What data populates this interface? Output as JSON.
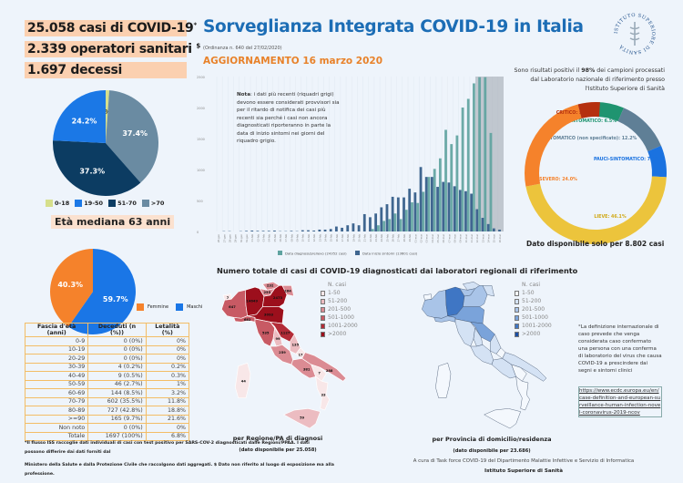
{
  "header": {
    "cases": "25.058 casi di COVID-19",
    "cases_mark": "*",
    "workers": "2.339 operatori sanitari",
    "workers_mark": "$",
    "deaths": "1.697 decessi"
  },
  "title": "Sorveglianza Integrata COVID-19 in Italia",
  "ordinance": "(Ordinanza n. 640 del 27/02/2020)",
  "update": "AGGIORNAMENTO 16 marzo 2020",
  "age_pie": {
    "slices": [
      {
        "label": "0-18",
        "value": 1.1,
        "text": "1.1%",
        "color": "#d6df8b"
      },
      {
        "label": ">70",
        "value": 37.4,
        "text": "37.4%",
        "color": "#6a8ba2"
      },
      {
        "label": "51-70",
        "value": 37.3,
        "text": "37.3%",
        "color": "#0c3c62"
      },
      {
        "label": "19-50",
        "value": 24.2,
        "text": "24.2%",
        "color": "#1b78e6"
      }
    ],
    "legend": [
      "0-18",
      "19-50",
      "51-70",
      ">70"
    ]
  },
  "median_age": "Età mediana 63 anni",
  "sex_pie": {
    "slices": [
      {
        "label": "Maschi",
        "value": 59.7,
        "text": "59.7%",
        "color": "#1a76e6"
      },
      {
        "label": "Femmine",
        "value": 40.3,
        "text": "40.3%",
        "color": "#f5822b"
      }
    ]
  },
  "table": {
    "headers": [
      "Fascia d'età (anni)",
      "Deceduti (n (%))",
      "Letalità (%)"
    ],
    "rows": [
      [
        "0-9",
        "0 (0%)",
        "0%"
      ],
      [
        "10-19",
        "0 (0%)",
        "0%"
      ],
      [
        "20-29",
        "0 (0%)",
        "0%"
      ],
      [
        "30-39",
        "4 (0.2%)",
        "0.2%"
      ],
      [
        "40-49",
        "9 (0.5%)",
        "0.3%"
      ],
      [
        "50-59",
        "46 (2.7%)",
        "1%"
      ],
      [
        "60-69",
        "144 (8.5%)",
        "3.2%"
      ],
      [
        "70-79",
        "602 (35.5%)",
        "11.8%"
      ],
      [
        "80-89",
        "727 (42.8%)",
        "18.8%"
      ],
      [
        ">=90",
        "165 (9.7%)",
        "21.6%"
      ],
      [
        "Non noto",
        "0 (0%)",
        "0%"
      ],
      [
        "Totale",
        "1697 (100%)",
        "6.8%"
      ]
    ]
  },
  "note": {
    "bold": "Nota",
    "text": ": i dati più recenti (riquadri grigi) devono essere considerati provvisori sia per il ritardo di notifica dei casi più recenti sia perché i casi non ancora diagnosticati riporteranno in parte la data di inizio sintomi nei giorni del riquadro grigio."
  },
  "chart_data": {
    "type": "bar",
    "ylim": [
      0,
      2500
    ],
    "yticks": [
      0,
      500,
      1000,
      1500,
      2000,
      2500
    ],
    "categories": [
      "26-gen",
      "27-gen",
      "28-gen",
      "29-gen",
      "30-gen",
      "31-gen",
      "01-feb",
      "02-feb",
      "03-feb",
      "04-feb",
      "05-feb",
      "06-feb",
      "07-feb",
      "08-feb",
      "09-feb",
      "10-feb",
      "11-feb",
      "12-feb",
      "13-feb",
      "14-feb",
      "15-feb",
      "16-feb",
      "17-feb",
      "18-feb",
      "19-feb",
      "20-feb",
      "21-feb",
      "22-feb",
      "23-feb",
      "24-feb",
      "25-feb",
      "26-feb",
      "27-feb",
      "28-feb",
      "29-feb",
      "01-mar",
      "02-mar",
      "03-mar",
      "04-mar",
      "05-mar",
      "06-mar",
      "07-mar",
      "08-mar",
      "09-mar",
      "10-mar",
      "11-mar",
      "12-mar",
      "13-mar",
      "14-mar",
      "15-mar",
      "16-mar"
    ],
    "series": [
      {
        "name": "Data diagnosi/prelievo (24352 casi)",
        "color": "#5fa3a0",
        "values": [
          0,
          0,
          0,
          0,
          0,
          0,
          0,
          0,
          0,
          0,
          0,
          0,
          0,
          0,
          0,
          0,
          0,
          0,
          0,
          0,
          0,
          0,
          0,
          0,
          0,
          0,
          0,
          40,
          100,
          170,
          200,
          290,
          200,
          350,
          470,
          460,
          640,
          880,
          1010,
          1180,
          1640,
          1410,
          1550,
          2000,
          2140,
          2390,
          2490,
          2490,
          1590,
          0,
          0
        ]
      },
      {
        "name": "Data inizio sintomi (13601 casi)",
        "color": "#3f6690",
        "values": [
          0,
          5,
          5,
          0,
          5,
          10,
          15,
          10,
          10,
          10,
          15,
          5,
          5,
          10,
          5,
          20,
          20,
          15,
          30,
          30,
          40,
          80,
          60,
          100,
          130,
          100,
          280,
          230,
          290,
          390,
          440,
          560,
          550,
          550,
          690,
          630,
          1040,
          880,
          880,
          720,
          800,
          790,
          730,
          670,
          650,
          610,
          360,
          220,
          120,
          50,
          30
        ]
      }
    ],
    "provisional_from": "12-mar",
    "legend_position": "bottom"
  },
  "donut": {
    "intro_pre": "Sono risultati positivi il ",
    "intro_bold": "98%",
    "intro_post": " dei campioni processati dal Laboratorio nazionale di riferimento presso l'Istituto Superiore di Sanità",
    "segments": [
      {
        "label": "ASINTOMATICO: 6.5%",
        "value": 6.5,
        "color": "#1f9470"
      },
      {
        "label": "SINTOMATICO (non specificato): 12.2%",
        "value": 12.2,
        "color": "#5f7f96"
      },
      {
        "label": "PAUCI-SINTOMATICO: 7.2%",
        "value": 7.2,
        "color": "#1a72e0"
      },
      {
        "label": "LIEVE: 46.1%",
        "value": 46.1,
        "color": "#ecc43c"
      },
      {
        "label": "SEVERO: 24.0%",
        "value": 24.0,
        "color": "#f5822b"
      },
      {
        "label": "CRITICO: 5.0%",
        "value": 5.0,
        "color": "#b5300f"
      }
    ],
    "footer": "Dato disponibile solo per 8.802 casi"
  },
  "logo_text": "ISTITUTO SUPERIORE DI SANITÀ",
  "maps": {
    "title": "Numero totale di casi di COVID-19 diagnosticati dai laboratori regionali di riferimento",
    "legend_title": "N. casi",
    "bins": [
      "1-50",
      "51-200",
      "201-500",
      "501-1000",
      "1001-2000",
      ">2000"
    ],
    "red_colors": [
      "#f8e7e8",
      "#ecbcc1",
      "#db8b93",
      "#c85a64",
      "#b32b37",
      "#9c0f1c"
    ],
    "blue_colors": [
      "#f4f8fd",
      "#d4e2f4",
      "#a9c4e8",
      "#7aa3da",
      "#3f76c4",
      "#1a4fa5"
    ],
    "regions": [
      {
        "name": "Valle d'Aosta",
        "cases": 7
      },
      {
        "name": "Piemonte",
        "cases": 647
      },
      {
        "name": "Lombardia",
        "cases": 14649
      },
      {
        "name": "Bolzano",
        "cases": 232
      },
      {
        "name": "Trento",
        "cases": 255
      },
      {
        "name": "Veneto",
        "cases": 2473
      },
      {
        "name": "Friuli Venezia Giulia",
        "cases": 264
      },
      {
        "name": "Liguria",
        "cases": 682
      },
      {
        "name": "Emilia-Romagna",
        "cases": 3093
      },
      {
        "name": "Toscana",
        "cases": 535
      },
      {
        "name": "Marche",
        "cases": 1127
      },
      {
        "name": "Umbria",
        "cases": 99
      },
      {
        "name": "Lazio",
        "cases": 259
      },
      {
        "name": "Abruzzo",
        "cases": 135
      },
      {
        "name": "Molise",
        "cases": 17
      },
      {
        "name": "Campania",
        "cases": 381
      },
      {
        "name": "Puglia",
        "cases": 288
      },
      {
        "name": "Basilicata",
        "cases": 7
      },
      {
        "name": "Calabria",
        "cases": 33
      },
      {
        "name": "Sicilia",
        "cases": 59
      },
      {
        "name": "Sardegna",
        "cases": 44
      }
    ],
    "red_caption": "per Regione/PA di diagnosi",
    "red_sub": "(dato disponibile per 25.058)",
    "blue_caption": "per Provincia di domicilio/residenza",
    "blue_sub": "(dato disponibile per 23.686)"
  },
  "definition": {
    "text": "°La definizione internazionale di caso prevede che venga considerata caso confermato una persona con una conferma di laboratorio del virus che causa COVID-19 a prescindere dai segni e sintomi clinici",
    "link": "https://www.ecdc.europa.eu/en/case-definition-and-european-surveillance-human-infection-novel-coronavirus-2019-ncov"
  },
  "footnote1": "*Il flusso ISS raccoglie dati individuali di casi con test positivo per SARS-COV-2 diagnosticati dalle Regioni/PPAA. I dati possono differire dai dati forniti dal",
  "footnote2": "Ministero della Salute e dalla Protezione Civile che raccolgono dati aggregati. $ Dato non riferito al luogo di esposizione ma alla professione.",
  "credits": "A cura di  Task force  COVID-19 del Dipartimento Malattie Infettive e Servizio di Informatica",
  "credits_org": "Istituto Superiore di Sanità"
}
